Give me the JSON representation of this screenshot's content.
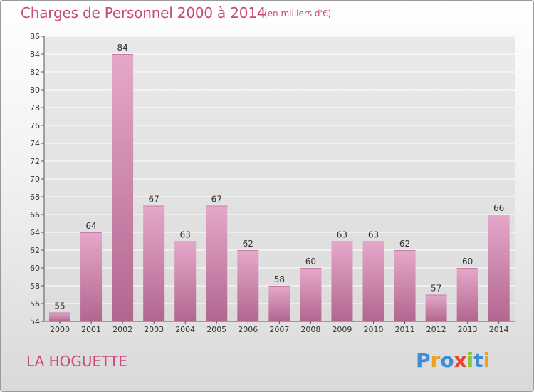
{
  "title": "Charges de Personnel 2000 à 2014",
  "subtitle": "(en milliers d'€)",
  "town": "LA HOGUETTE",
  "logo": {
    "text": "Proxiti",
    "letters": [
      {
        "ch": "P",
        "color": "#3a8fd6"
      },
      {
        "ch": "r",
        "color": "#f0a020"
      },
      {
        "ch": "o",
        "color": "#3a8fd6"
      },
      {
        "ch": "x",
        "color": "#e8442c"
      },
      {
        "ch": "i",
        "color": "#8cc63f"
      },
      {
        "ch": "t",
        "color": "#3a8fd6"
      },
      {
        "ch": "i",
        "color": "#f0a020"
      }
    ]
  },
  "colors": {
    "accent": "#c8477d",
    "bar_top": "#e5a8ca",
    "bar_bottom": "#b2668f",
    "grid": "#ffffff"
  },
  "chart_data": {
    "type": "bar",
    "categories": [
      "2000",
      "2001",
      "2002",
      "2003",
      "2004",
      "2005",
      "2006",
      "2007",
      "2008",
      "2009",
      "2010",
      "2011",
      "2012",
      "2013",
      "2014"
    ],
    "values": [
      55,
      64,
      84,
      67,
      63,
      67,
      62,
      58,
      60,
      63,
      63,
      62,
      57,
      60,
      66
    ],
    "ylim": [
      54,
      86
    ],
    "yticks": [
      54,
      56,
      58,
      60,
      62,
      64,
      66,
      68,
      70,
      72,
      74,
      76,
      78,
      80,
      82,
      84,
      86
    ],
    "grid": true,
    "xlabel": "",
    "ylabel": ""
  }
}
